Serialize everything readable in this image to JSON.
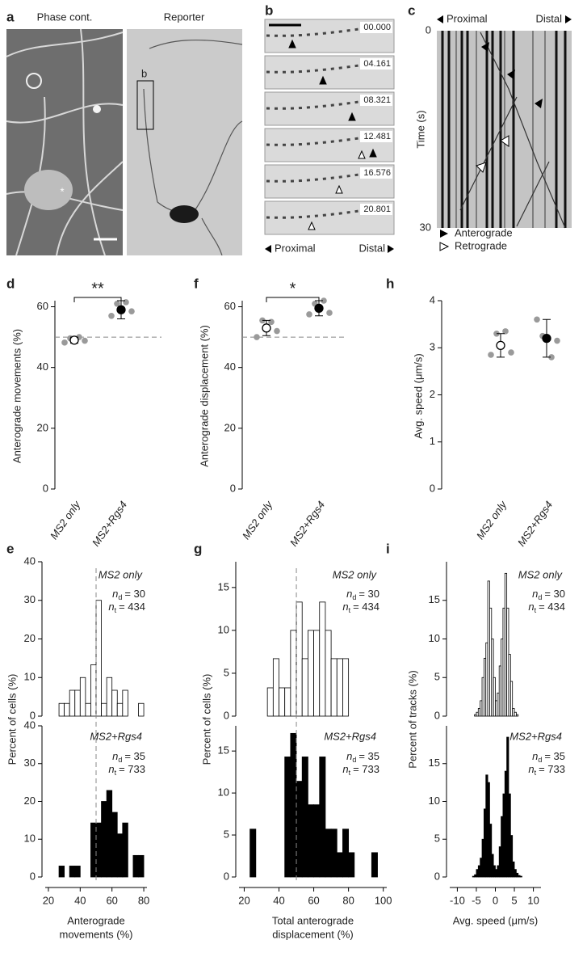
{
  "figure": {
    "panel_a": {
      "label": "a",
      "left_title": "Phase cont.",
      "right_title": "Reporter",
      "box_label": "b",
      "marker": "*"
    },
    "panel_b": {
      "label": "b",
      "timestamps": [
        "00.000",
        "04.161",
        "08.321",
        "12.481",
        "16.576",
        "20.801"
      ],
      "proximal": "Proximal",
      "distal": "Distal"
    },
    "panel_c": {
      "label": "c",
      "proximal": "Proximal",
      "distal": "Distal",
      "ylabel": "Time (s)",
      "yticks": [
        0,
        30
      ],
      "legend": [
        "Anterograde",
        "Retrograde"
      ]
    }
  },
  "chart_data": [
    {
      "type": "dot",
      "panel": "d",
      "ylabel": "Anterograde movements (%)",
      "categories": [
        "MS2 only",
        "MS2+Rgs4"
      ],
      "means": [
        49,
        59
      ],
      "errors": [
        1,
        3
      ],
      "points": [
        [
          48.2,
          49.6,
          50,
          48.8
        ],
        [
          57,
          61,
          61.5,
          58.5
        ]
      ],
      "marker_fills": [
        "#ffffff",
        "#000000"
      ],
      "point_color": "#9a9a9a",
      "ylim": [
        0,
        62
      ],
      "yticks": [
        0,
        20,
        40,
        60
      ],
      "reference_line": 50,
      "significance": "**"
    },
    {
      "type": "dot",
      "panel": "f",
      "ylabel": "Anterograde displacement (%)",
      "categories": [
        "MS2 only",
        "MS2+Rgs4"
      ],
      "means": [
        53,
        59.5
      ],
      "errors": [
        2.5,
        2.5
      ],
      "points": [
        [
          50,
          55.5,
          55,
          52
        ],
        [
          57.5,
          61,
          62,
          58
        ]
      ],
      "marker_fills": [
        "#ffffff",
        "#000000"
      ],
      "point_color": "#9a9a9a",
      "ylim": [
        0,
        62
      ],
      "yticks": [
        0,
        20,
        40,
        60
      ],
      "reference_line": 50,
      "significance": "*"
    },
    {
      "type": "dot",
      "panel": "h",
      "ylabel": "Avg. speed (μm/s)",
      "categories": [
        "MS2 only",
        "MS2+Rgs4"
      ],
      "means": [
        3.05,
        3.2
      ],
      "errors": [
        0.25,
        0.4
      ],
      "points": [
        [
          2.85,
          3.3,
          3.35,
          2.9
        ],
        [
          3.6,
          3.25,
          2.8,
          3.15
        ]
      ],
      "marker_fills": [
        "#ffffff",
        "#000000"
      ],
      "point_color": "#9a9a9a",
      "ylim": [
        0,
        4
      ],
      "yticks": [
        0,
        1,
        2,
        3,
        4
      ]
    },
    {
      "type": "histogram",
      "panel": "e",
      "ylabel": "Percent of cells (%)",
      "xlabel": [
        "Anterograde",
        "movements (%)"
      ],
      "xlim": [
        18,
        82
      ],
      "xticks": [
        20,
        40,
        60,
        80
      ],
      "reference_line": 50,
      "subplots": [
        {
          "name": "MS2 only",
          "stats": [
            {
              "symbol": "n",
              "subscript": "d",
              "text": "= 30"
            },
            {
              "symbol": "n",
              "subscript": "t",
              "text": "= 434"
            }
          ],
          "bins": [
            26.67,
            30,
            33.33,
            36.67,
            40,
            43.33,
            46.67,
            50,
            53.33,
            56.67,
            60,
            63.33,
            66.67,
            70,
            73.33,
            76.67,
            80
          ],
          "values": [
            3.3,
            3.3,
            6.7,
            6.7,
            10,
            3.3,
            13.3,
            30,
            3.3,
            10,
            6.7,
            3.3,
            6.7,
            0,
            0,
            3.3
          ],
          "ylim": [
            0,
            40
          ],
          "yticks": [
            0,
            10,
            20,
            30,
            40
          ],
          "fill": "#ffffff"
        },
        {
          "name": "MS2+Rgs4",
          "stats": [
            {
              "symbol": "n",
              "subscript": "d",
              "text": "= 35"
            },
            {
              "symbol": "n",
              "subscript": "t",
              "text": "= 733"
            }
          ],
          "bins": [
            26.67,
            30,
            33.33,
            36.67,
            40,
            43.33,
            46.67,
            50,
            53.33,
            56.67,
            60,
            63.33,
            66.67,
            70,
            73.33,
            76.67,
            80
          ],
          "values": [
            2.9,
            0,
            2.9,
            2.9,
            0,
            0,
            14.3,
            14.3,
            20,
            22.9,
            17.1,
            11.4,
            14.3,
            0,
            5.7,
            5.7
          ],
          "ylim": [
            0,
            40
          ],
          "yticks": [
            0,
            10,
            20,
            30,
            40
          ],
          "fill": "#000000"
        }
      ]
    },
    {
      "type": "histogram",
      "panel": "g",
      "ylabel": "Percent of cells (%)",
      "xlabel": [
        "Total anterograde",
        "displacement (%)"
      ],
      "xlim": [
        17,
        102
      ],
      "xticks": [
        20,
        40,
        60,
        80,
        100
      ],
      "reference_line": 50,
      "subplots": [
        {
          "name": "MS2 only",
          "stats": [
            {
              "symbol": "n",
              "subscript": "d",
              "text": "= 30"
            },
            {
              "symbol": "n",
              "subscript": "t",
              "text": "= 434"
            }
          ],
          "bins": [
            33.33,
            36.67,
            40,
            43.33,
            46.67,
            50,
            53.33,
            56.67,
            60,
            63.33,
            66.67,
            70,
            73.33,
            76.67,
            80
          ],
          "values": [
            3.3,
            6.7,
            3.3,
            3.3,
            10,
            13.3,
            6.7,
            10,
            10,
            13.3,
            10,
            6.7,
            6.7,
            6.7
          ],
          "ylim": [
            0,
            18
          ],
          "yticks": [
            0,
            5,
            10,
            15
          ],
          "fill": "#ffffff"
        },
        {
          "name": "MS2+Rgs4",
          "stats": [
            {
              "symbol": "n",
              "subscript": "d",
              "text": "= 35"
            },
            {
              "symbol": "n",
              "subscript": "t",
              "text": "= 733"
            }
          ],
          "bins": [
            23.33,
            26.67,
            30,
            33.33,
            36.67,
            40,
            43.33,
            46.67,
            50,
            53.33,
            56.67,
            60,
            63.33,
            66.67,
            70,
            73.33,
            76.67,
            80,
            83.33,
            86.67,
            90,
            93.33,
            96.67
          ],
          "values": [
            5.7,
            0,
            0,
            0,
            0,
            0,
            14.3,
            17.1,
            11.4,
            14.3,
            8.6,
            8.6,
            14.3,
            5.7,
            5.7,
            2.9,
            5.7,
            2.9,
            0,
            0,
            0,
            2.9
          ],
          "ylim": [
            0,
            18
          ],
          "yticks": [
            0,
            5,
            10,
            15
          ],
          "fill": "#000000"
        }
      ]
    },
    {
      "type": "histogram",
      "panel": "i",
      "ylabel": "Percent of tracks (%)",
      "xlabel": [
        "Avg. speed (μm/s)"
      ],
      "xlim": [
        -12,
        12
      ],
      "xticks": [
        -10,
        -5,
        0,
        5,
        10
      ],
      "subplots": [
        {
          "name": "MS2 only",
          "stats": [
            {
              "symbol": "n",
              "subscript": "d",
              "text": "= 30"
            },
            {
              "symbol": "n",
              "subscript": "t",
              "text": "= 434"
            }
          ],
          "bins": [
            -6,
            -5.5,
            -5,
            -4.5,
            -4,
            -3.5,
            -3,
            -2.5,
            -2,
            -1.5,
            -1,
            -0.5,
            0,
            0.5,
            1,
            1.5,
            2,
            2.5,
            3,
            3.5,
            4,
            4.5,
            5,
            5.5,
            6
          ],
          "values": [
            0,
            0.2,
            0.5,
            1,
            2,
            5,
            7.5,
            9.5,
            17.5,
            14,
            10,
            5,
            2,
            3,
            6.5,
            10,
            14,
            18.5,
            14,
            8,
            4.5,
            1,
            0.5,
            0.2
          ],
          "ylim": [
            0,
            20
          ],
          "yticks": [
            0,
            5,
            10,
            15
          ],
          "fill": "#ffffff"
        },
        {
          "name": "MS2+Rgs4",
          "stats": [
            {
              "symbol": "n",
              "subscript": "d",
              "text": "= 35"
            },
            {
              "symbol": "n",
              "subscript": "t",
              "text": "= 733"
            }
          ],
          "bins": [
            -6,
            -5.5,
            -5,
            -4.5,
            -4,
            -3.5,
            -3,
            -2.5,
            -2,
            -1.5,
            -1,
            -0.5,
            0,
            0.5,
            1,
            1.5,
            2,
            2.5,
            3,
            3.5,
            4,
            4.5,
            5,
            5.5,
            6,
            6.5,
            7
          ],
          "values": [
            0.1,
            0.3,
            1,
            1.5,
            2.5,
            5,
            9,
            13.5,
            12.5,
            7,
            3,
            1.5,
            1,
            1.5,
            4,
            8,
            11,
            14,
            18.5,
            11,
            5.5,
            2,
            1,
            0.5,
            0.2,
            0.1
          ],
          "ylim": [
            0,
            20
          ],
          "yticks": [
            0,
            5,
            10,
            15
          ],
          "fill": "#000000"
        }
      ]
    }
  ]
}
